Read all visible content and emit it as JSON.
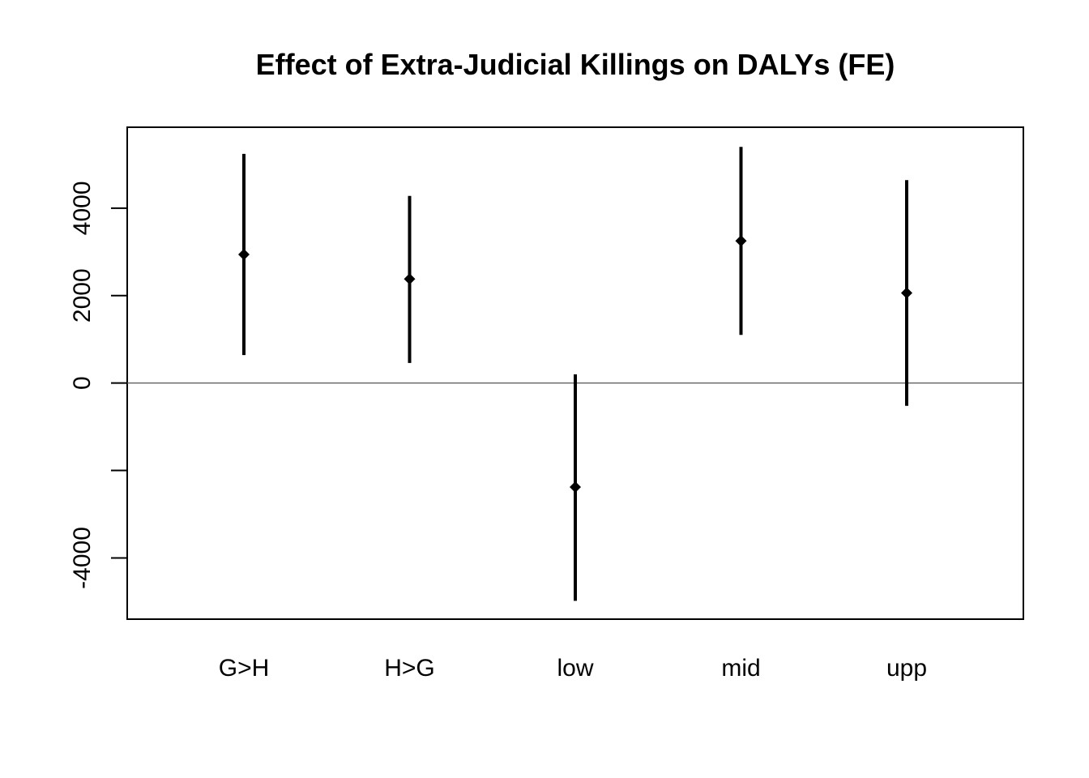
{
  "chart_data": {
    "type": "scatter",
    "title": "Effect of Extra-Judicial Killings on DALYs (FE)",
    "xlabel": "",
    "ylabel": "",
    "categories": [
      "G>H",
      "H>G",
      "low",
      "mid",
      "upp"
    ],
    "estimates": [
      2940,
      2380,
      -2380,
      3250,
      2060
    ],
    "lower": [
      640,
      460,
      -4980,
      1100,
      -520
    ],
    "upper": [
      5240,
      4280,
      200,
      5400,
      4640
    ],
    "ylim": [
      -5400,
      5850
    ],
    "yticks": [
      -4000,
      -2000,
      0,
      2000,
      4000
    ],
    "ytick_labels": [
      "-4000",
      "",
      "0",
      "2000",
      "4000"
    ],
    "reference_line": 0,
    "grid": false,
    "legend": "none",
    "colors": {
      "marks": "#000000",
      "reference": "#555555"
    }
  }
}
